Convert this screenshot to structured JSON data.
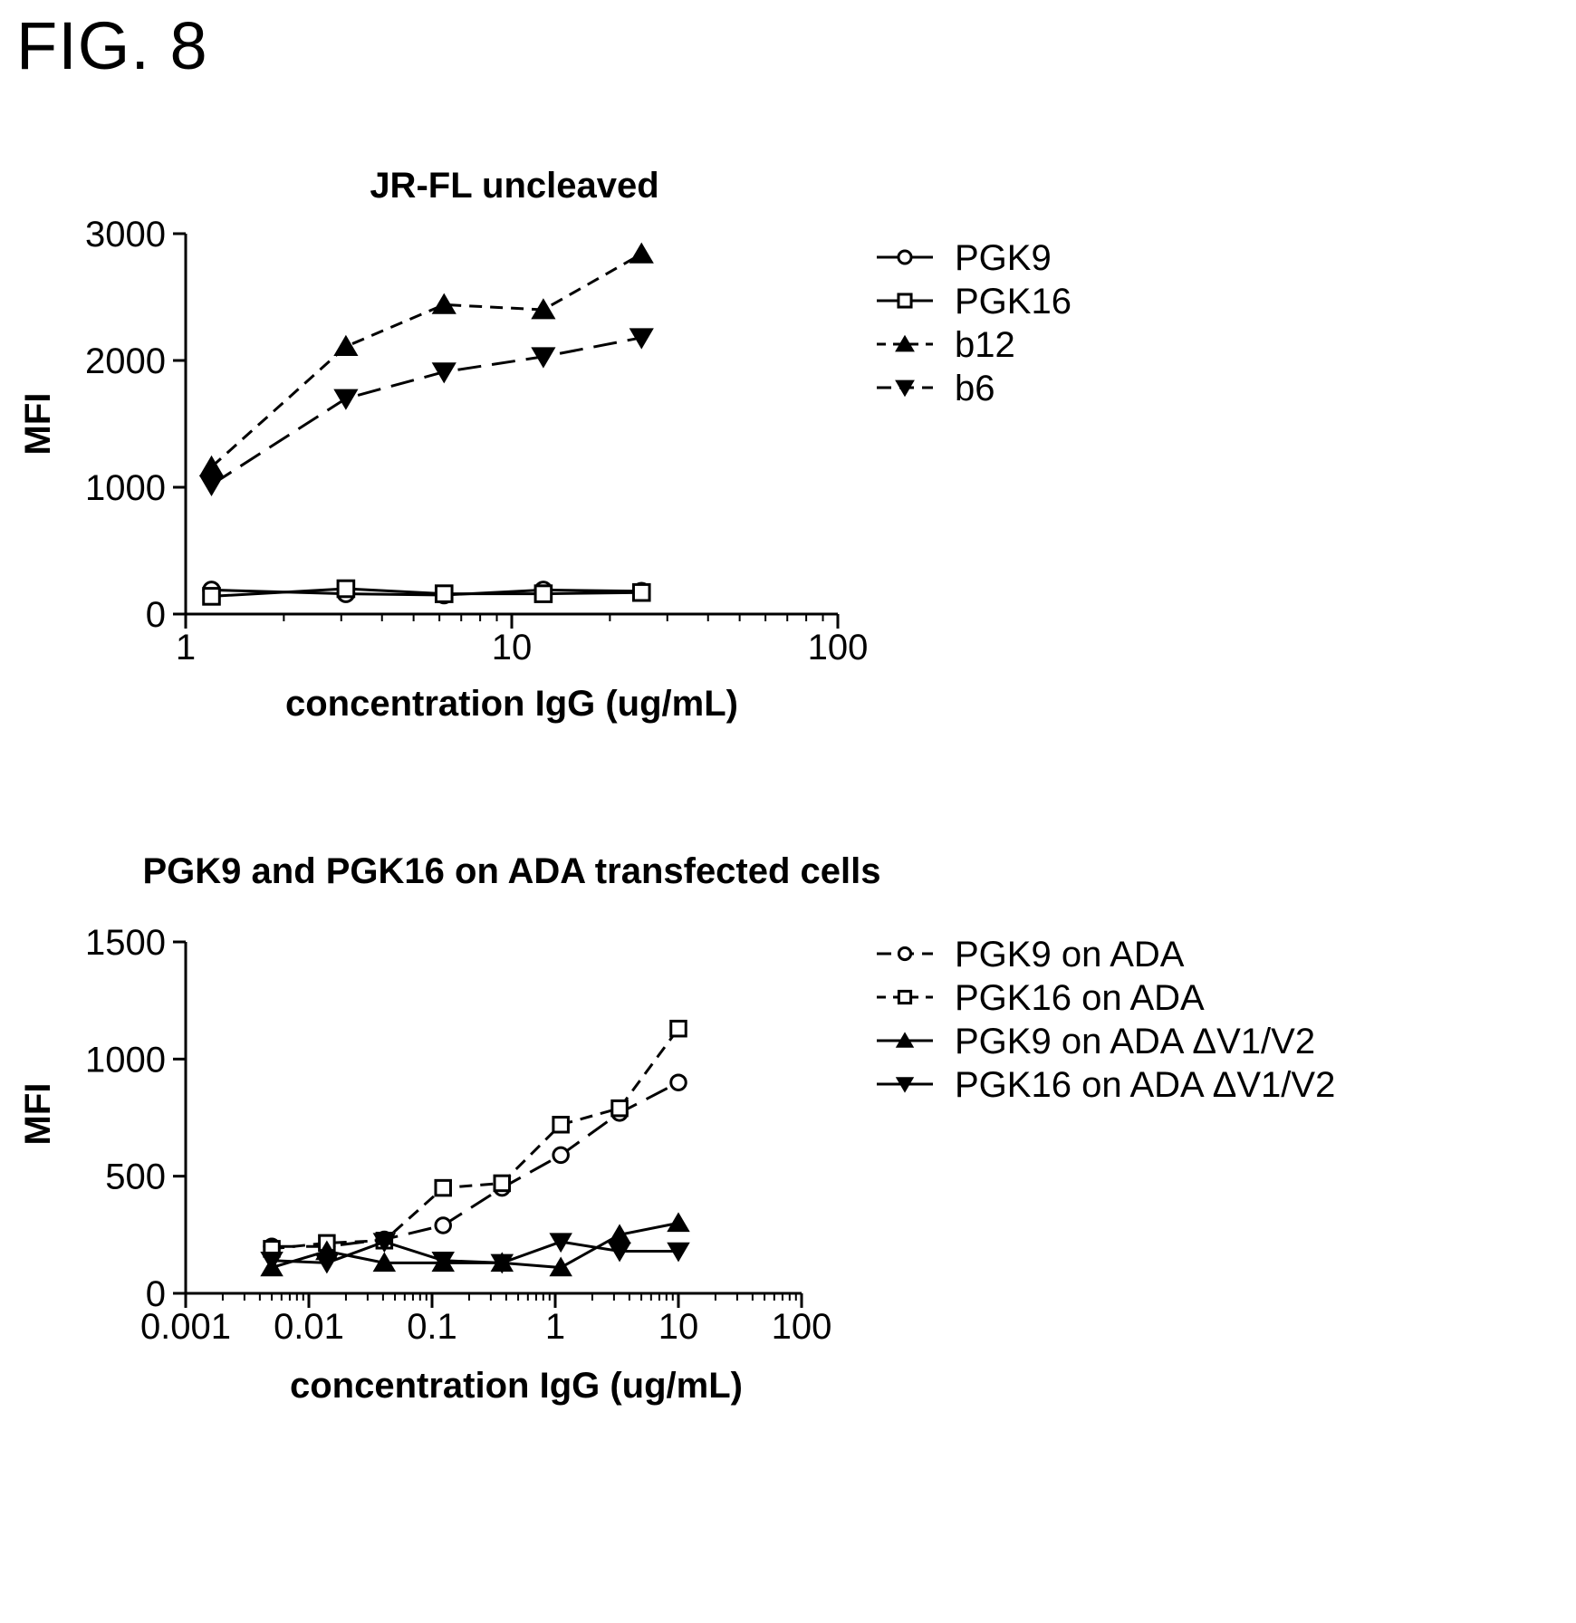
{
  "figure_label": "FIG. 8",
  "chart_data": [
    {
      "type": "line",
      "title": "JR-FL uncleaved",
      "xlabel": "concentration IgG (ug/mL)",
      "ylabel": "MFI",
      "xscale": "log",
      "xlim": [
        1,
        100
      ],
      "ylim": [
        0,
        3000
      ],
      "xticks": [
        "1",
        "10",
        "100"
      ],
      "yticks": [
        "0",
        "1000",
        "2000",
        "3000"
      ],
      "legend_position": "right",
      "x": [
        1.2,
        3.1,
        6.2,
        12.5,
        25
      ],
      "series": [
        {
          "name": "PGK9",
          "marker": "circle-open",
          "dash": "solid",
          "values": [
            190,
            160,
            150,
            190,
            180
          ]
        },
        {
          "name": "PGK16",
          "marker": "square-open",
          "dash": "solid",
          "values": [
            140,
            200,
            160,
            160,
            170
          ]
        },
        {
          "name": "b12",
          "marker": "triangle-up-filled",
          "dash": "short-dash",
          "values": [
            1160,
            2110,
            2440,
            2400,
            2840
          ]
        },
        {
          "name": "b6",
          "marker": "triangle-down-filled",
          "dash": "long-dash",
          "values": [
            1020,
            1700,
            1910,
            2030,
            2180
          ]
        }
      ]
    },
    {
      "type": "line",
      "title": "PGK9 and PGK16 on ADA transfected cells",
      "xlabel": "concentration IgG (ug/mL)",
      "ylabel": "MFI",
      "xscale": "log",
      "xlim": [
        0.001,
        100
      ],
      "ylim": [
        0,
        1500
      ],
      "xticks": [
        "0.001",
        "0.01",
        "0.1",
        "1",
        "10",
        "100"
      ],
      "yticks": [
        "0",
        "500",
        "1000",
        "1500"
      ],
      "legend_position": "right",
      "x": [
        0.005,
        0.014,
        0.041,
        0.123,
        0.37,
        1.11,
        3.33,
        10
      ],
      "series": [
        {
          "name": "PGK9 on ADA",
          "marker": "circle-open",
          "dash": "long-dash",
          "values": [
            200,
            200,
            230,
            290,
            450,
            590,
            770,
            900
          ]
        },
        {
          "name": "PGK16 on ADA",
          "marker": "square-open",
          "dash": "short-dash",
          "values": [
            190,
            215,
            225,
            450,
            470,
            720,
            790,
            1130
          ]
        },
        {
          "name": "PGK9 on ADA ΔV1/V2",
          "marker": "triangle-up-filled",
          "dash": "solid",
          "values": [
            110,
            180,
            130,
            130,
            130,
            110,
            250,
            300
          ]
        },
        {
          "name": "PGK16 on ADA ΔV1/V2",
          "marker": "triangle-down-filled",
          "dash": "solid",
          "values": [
            140,
            130,
            220,
            140,
            130,
            220,
            180,
            180
          ]
        }
      ]
    }
  ]
}
